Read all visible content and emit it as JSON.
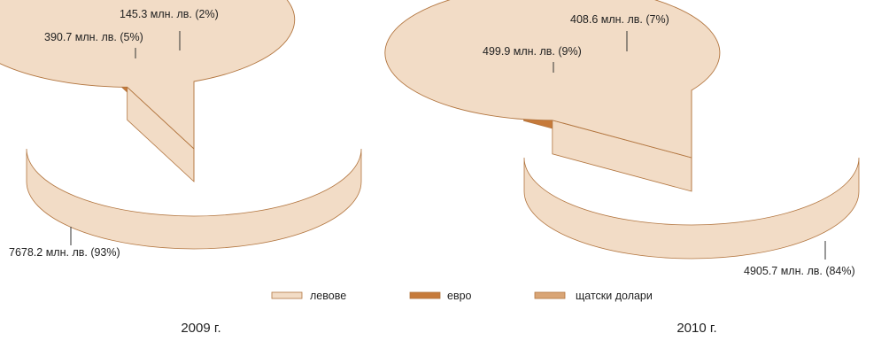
{
  "colors": {
    "levove": "#f2dcc6",
    "evro": "#c67a3a",
    "usd": "#d9a576",
    "outline": "#b2753f"
  },
  "legend": {
    "items": [
      {
        "label": "левове"
      },
      {
        "label": "евро"
      },
      {
        "label": "щатски долари"
      }
    ]
  },
  "chart_data": [
    {
      "type": "pie",
      "title": "2009 г.",
      "unit": "млн. лв.",
      "categories": [
        "левове",
        "евро",
        "щатски долари"
      ],
      "values": [
        7678.2,
        390.7,
        145.3
      ],
      "percent": [
        93,
        5,
        2
      ],
      "labels": [
        "7678.2 млн. лв. (93%)",
        "390.7 млн. лв. (5%)",
        "145.3 млн. лв. (2%)"
      ],
      "exploded": [
        false,
        true,
        true
      ]
    },
    {
      "type": "pie",
      "title": "2010 г.",
      "unit": "млн. лв.",
      "categories": [
        "левове",
        "евро",
        "щатски долари"
      ],
      "values": [
        4905.7,
        499.9,
        408.6
      ],
      "percent": [
        84,
        9,
        7
      ],
      "labels": [
        "4905.7 млн. лв. (84%)",
        "499.9 млн. лв. (9%)",
        "408.6 млн. лв. (7%)"
      ],
      "exploded": [
        false,
        true,
        true
      ]
    }
  ]
}
